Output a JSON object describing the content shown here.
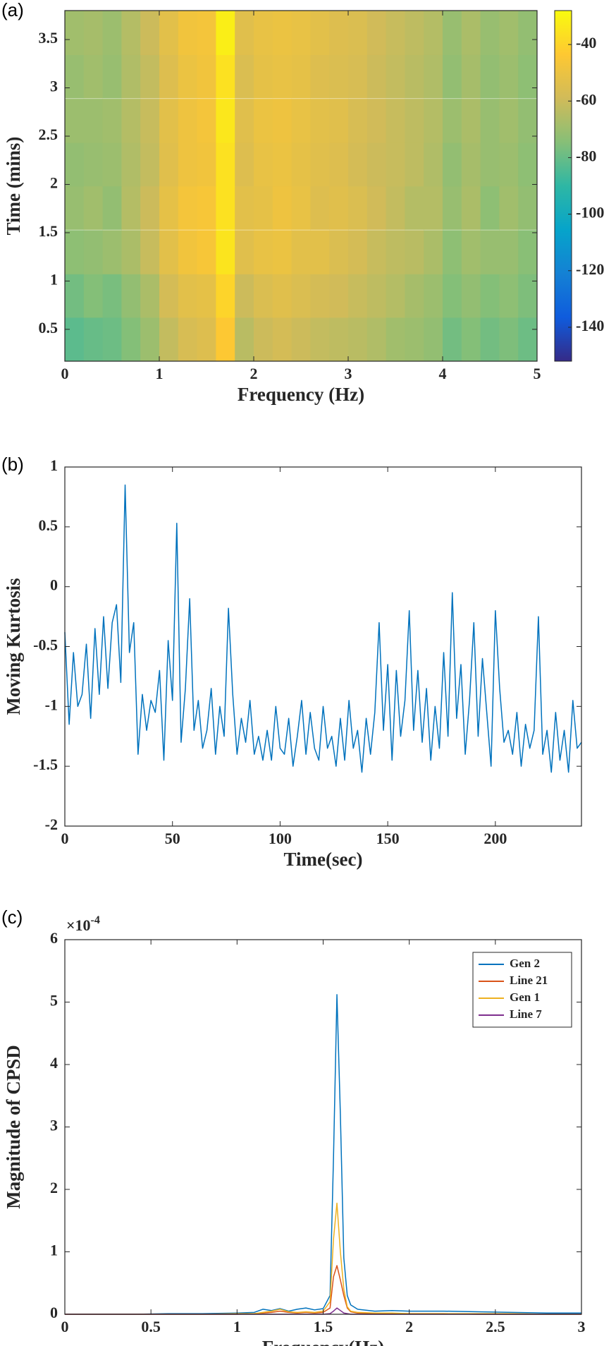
{
  "chart_data": [
    {
      "type": "heatmap",
      "label": "(a)",
      "xlabel": "Frequency (Hz)",
      "ylabel": "Time (mins)",
      "x": [
        0.1,
        0.3,
        0.5,
        0.7,
        0.9,
        1.1,
        1.3,
        1.5,
        1.7,
        1.9,
        2.1,
        2.3,
        2.5,
        2.7,
        2.9,
        3.1,
        3.3,
        3.5,
        3.7,
        3.9,
        4.1,
        4.3,
        4.5,
        4.7,
        4.9
      ],
      "y": [
        0.4,
        0.85,
        1.3,
        1.76,
        2.21,
        2.66,
        3.12,
        3.57
      ],
      "z": [
        [
          -82,
          -80,
          -79,
          -75,
          -70,
          -62,
          -57,
          -55,
          -44,
          -64,
          -60,
          -58,
          -60,
          -62,
          -63,
          -64,
          -66,
          -69,
          -70,
          -72,
          -78,
          -75,
          -78,
          -76,
          -79
        ],
        [
          -78,
          -75,
          -77,
          -72,
          -67,
          -58,
          -53,
          -52,
          -40,
          -60,
          -56,
          -54,
          -56,
          -58,
          -59,
          -61,
          -63,
          -65,
          -68,
          -70,
          -75,
          -72,
          -75,
          -73,
          -76
        ],
        [
          -73,
          -72,
          -70,
          -67,
          -61,
          -53,
          -48,
          -46,
          -35,
          -54,
          -51,
          -50,
          -53,
          -53,
          -56,
          -58,
          -61,
          -63,
          -64,
          -67,
          -73,
          -69,
          -71,
          -71,
          -74
        ],
        [
          -71,
          -69,
          -72,
          -65,
          -60,
          -52,
          -47,
          -46,
          -36,
          -53,
          -52,
          -49,
          -51,
          -55,
          -54,
          -56,
          -59,
          -62,
          -65,
          -65,
          -71,
          -67,
          -73,
          -69,
          -72
        ],
        [
          -72,
          -71,
          -70,
          -66,
          -62,
          -54,
          -49,
          -48,
          -36,
          -55,
          -51,
          -50,
          -52,
          -54,
          -55,
          -58,
          -60,
          -61,
          -63,
          -66,
          -72,
          -68,
          -71,
          -70,
          -73
        ],
        [
          -70,
          -70,
          -69,
          -65,
          -61,
          -53,
          -49,
          -47,
          -34,
          -54,
          -50,
          -49,
          -51,
          -53,
          -54,
          -57,
          -59,
          -61,
          -63,
          -65,
          -70,
          -67,
          -71,
          -69,
          -72
        ],
        [
          -71,
          -69,
          -71,
          -66,
          -62,
          -55,
          -50,
          -48,
          -36,
          -56,
          -52,
          -51,
          -52,
          -55,
          -56,
          -57,
          -60,
          -62,
          -64,
          -66,
          -72,
          -68,
          -72,
          -70,
          -73
        ],
        [
          -69,
          -68,
          -70,
          -65,
          -60,
          -53,
          -48,
          -47,
          -32,
          -54,
          -51,
          -50,
          -51,
          -53,
          -55,
          -56,
          -59,
          -61,
          -63,
          -65,
          -71,
          -67,
          -71,
          -69,
          -72
        ]
      ],
      "xlim": [
        0,
        5
      ],
      "xticks": [
        0,
        1,
        2,
        3,
        4,
        5
      ],
      "ylim": [
        0.17,
        3.8
      ],
      "yticks": [
        0.5,
        1,
        1.5,
        2,
        2.5,
        3,
        3.5
      ],
      "clim": [
        -152,
        -28
      ],
      "cticks": [
        -140,
        -120,
        -100,
        -80,
        -60,
        -40
      ],
      "colormap": [
        "#352a87",
        "#0f5cdd",
        "#1481d4",
        "#06a4ca",
        "#2eb7a4",
        "#87bf77",
        "#d1bb59",
        "#fec832",
        "#f9fb0e"
      ]
    },
    {
      "type": "line",
      "label": "(b)",
      "xlabel": "Time(sec)",
      "ylabel": "Moving Kurtosis",
      "color": "#0072bd",
      "x": [
        0,
        2,
        4,
        6,
        8,
        10,
        12,
        14,
        16,
        18,
        20,
        22,
        24,
        26,
        28,
        30,
        32,
        34,
        36,
        38,
        40,
        42,
        44,
        46,
        48,
        50,
        52,
        54,
        56,
        58,
        60,
        62,
        64,
        66,
        68,
        70,
        72,
        74,
        76,
        78,
        80,
        82,
        84,
        86,
        88,
        90,
        92,
        94,
        96,
        98,
        100,
        102,
        104,
        106,
        108,
        110,
        112,
        114,
        116,
        118,
        120,
        122,
        124,
        126,
        128,
        130,
        132,
        134,
        136,
        138,
        140,
        142,
        144,
        146,
        148,
        150,
        152,
        154,
        156,
        158,
        160,
        162,
        164,
        166,
        168,
        170,
        172,
        174,
        176,
        178,
        180,
        182,
        184,
        186,
        188,
        190,
        192,
        194,
        196,
        198,
        200,
        202,
        204,
        206,
        208,
        210,
        212,
        214,
        216,
        218,
        220,
        222,
        224,
        226,
        228,
        230,
        232,
        234,
        236,
        238,
        240
      ],
      "values": [
        -0.38,
        -1.15,
        -0.55,
        -1.0,
        -0.9,
        -0.48,
        -1.1,
        -0.35,
        -0.9,
        -0.25,
        -0.85,
        -0.3,
        -0.15,
        -0.8,
        0.85,
        -0.55,
        -0.3,
        -1.4,
        -0.9,
        -1.2,
        -0.95,
        -1.05,
        -0.7,
        -1.45,
        -0.45,
        -0.95,
        0.53,
        -1.3,
        -0.85,
        -0.1,
        -1.2,
        -0.95,
        -1.35,
        -1.2,
        -0.85,
        -1.4,
        -1.0,
        -1.25,
        -0.18,
        -0.9,
        -1.4,
        -1.1,
        -1.3,
        -0.95,
        -1.4,
        -1.25,
        -1.45,
        -1.2,
        -1.45,
        -1.0,
        -1.35,
        -1.4,
        -1.1,
        -1.5,
        -1.25,
        -0.95,
        -1.4,
        -1.05,
        -1.35,
        -1.45,
        -1.0,
        -1.35,
        -1.25,
        -1.5,
        -1.1,
        -1.45,
        -0.95,
        -1.35,
        -1.2,
        -1.55,
        -1.1,
        -1.4,
        -1.05,
        -0.3,
        -1.2,
        -0.65,
        -1.45,
        -0.7,
        -1.25,
        -0.95,
        -0.2,
        -1.2,
        -0.7,
        -1.3,
        -0.85,
        -1.45,
        -1.0,
        -1.35,
        -0.55,
        -1.25,
        -0.05,
        -1.1,
        -0.65,
        -1.4,
        -0.95,
        -0.3,
        -1.25,
        -0.6,
        -1.05,
        -1.5,
        -0.2,
        -0.85,
        -1.3,
        -1.2,
        -1.4,
        -1.05,
        -1.5,
        -1.15,
        -1.35,
        -1.2,
        -0.25,
        -1.4,
        -1.2,
        -1.55,
        -1.05,
        -1.45,
        -1.2,
        -1.55,
        -0.95,
        -1.35,
        -1.3
      ],
      "xlim": [
        0,
        240
      ],
      "xticks": [
        0,
        50,
        100,
        150,
        200
      ],
      "ylim": [
        -2,
        1
      ],
      "yticks": [
        -2,
        -1.5,
        -1,
        -0.5,
        0,
        0.5,
        1
      ]
    },
    {
      "type": "line",
      "label": "(c)",
      "xlabel": "Frequency(Hz)",
      "ylabel": "Magnitude of CPSD",
      "y_scale_label": {
        "base": "×10",
        "exponent": "-4"
      },
      "legend": "upper right",
      "x": [
        0,
        0.2,
        0.4,
        0.6,
        0.8,
        1.0,
        1.1,
        1.15,
        1.2,
        1.25,
        1.3,
        1.35,
        1.4,
        1.45,
        1.5,
        1.54,
        1.56,
        1.58,
        1.6,
        1.62,
        1.64,
        1.66,
        1.7,
        1.8,
        1.9,
        2.0,
        2.2,
        2.4,
        2.6,
        2.8,
        3.0
      ],
      "series": [
        {
          "name": "Gen 2",
          "color": "#0072bd",
          "values": [
            0,
            0,
            0,
            0.01,
            0.01,
            0.02,
            0.03,
            0.08,
            0.06,
            0.09,
            0.05,
            0.08,
            0.1,
            0.07,
            0.09,
            0.3,
            2.5,
            5.12,
            3.2,
            0.9,
            0.3,
            0.15,
            0.08,
            0.05,
            0.06,
            0.05,
            0.05,
            0.04,
            0.03,
            0.02,
            0.02
          ]
        },
        {
          "name": "Line 21",
          "color": "#d95319",
          "values": [
            0,
            0,
            0,
            0,
            0,
            0,
            0.01,
            0.02,
            0.03,
            0.05,
            0.03,
            0.02,
            0.03,
            0.02,
            0.03,
            0.1,
            0.6,
            0.78,
            0.55,
            0.3,
            0.1,
            0.04,
            0.02,
            0.01,
            0.01,
            0.01,
            0.01,
            0,
            0,
            0,
            0
          ]
        },
        {
          "name": "Gen 1",
          "color": "#edb120",
          "values": [
            0,
            0,
            0,
            0,
            0,
            0.01,
            0.01,
            0.03,
            0.05,
            0.08,
            0.04,
            0.03,
            0.04,
            0.03,
            0.05,
            0.2,
            1.2,
            1.78,
            1.0,
            0.4,
            0.12,
            0.05,
            0.03,
            0.02,
            0.02,
            0.01,
            0.01,
            0.01,
            0.01,
            0,
            0
          ]
        },
        {
          "name": "Line 7",
          "color": "#7e2f8e",
          "values": [
            0,
            0,
            0,
            0,
            0,
            0,
            0,
            0,
            0,
            0,
            0,
            0,
            0,
            0,
            0,
            0.01,
            0.05,
            0.1,
            0.06,
            0.02,
            0.01,
            0,
            0,
            0,
            0,
            0,
            0,
            0,
            0,
            0,
            0
          ]
        }
      ],
      "xlim": [
        0,
        3
      ],
      "xticks": [
        0,
        0.5,
        1,
        1.5,
        2,
        2.5,
        3
      ],
      "ylim": [
        0,
        6
      ],
      "yticks": [
        0,
        1,
        2,
        3,
        4,
        5,
        6
      ]
    }
  ]
}
